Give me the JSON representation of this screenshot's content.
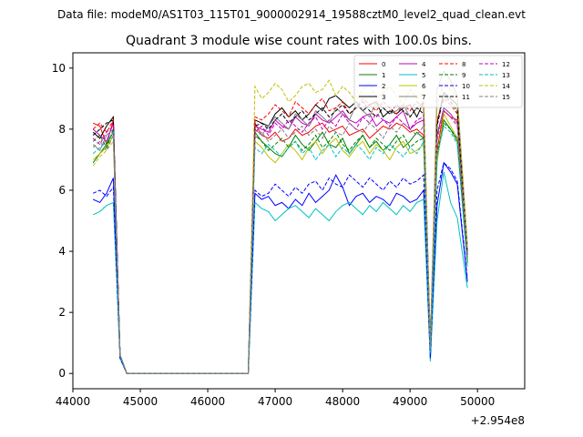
{
  "chart_data": {
    "type": "line",
    "suptitle": "Data file: modeM0/AS1T03_115T01_9000002914_19588cztM0_level2_quad_clean.evt",
    "title": "Quadrant 3 module wise count rates with 100.0s bins.",
    "xlabel": "",
    "ylabel": "",
    "x_offset_label": "+2.954e8",
    "xlim": [
      44000,
      50700
    ],
    "ylim": [
      -0.5,
      10.5
    ],
    "xticks": [
      44000,
      45000,
      46000,
      47000,
      48000,
      49000,
      50000
    ],
    "yticks": [
      0,
      2,
      4,
      6,
      8,
      10
    ],
    "grid": false,
    "legend": {
      "placement": "upper right",
      "columns": 4
    },
    "series": [
      {
        "name": "0",
        "color": "#ff0000",
        "style": "solid",
        "values": [
          8.2,
          8.1,
          7.5,
          8.3,
          0.6,
          0,
          0,
          0,
          8.2,
          7.8,
          7.7,
          7.9,
          7.6,
          7.7,
          8.0,
          7.8,
          7.9,
          8.1,
          8.2,
          7.9,
          8.0,
          8.1,
          7.8,
          7.9,
          8.0,
          7.7,
          7.9,
          8.1,
          8.0,
          8.2,
          8.1,
          7.9,
          8.0,
          7.8,
          0.8,
          7.3,
          8.6,
          8.4,
          8.3,
          3.9
        ]
      },
      {
        "name": "1",
        "color": "#008000",
        "style": "solid",
        "values": [
          6.9,
          7.2,
          7.5,
          7.9,
          0.6,
          0,
          0,
          0,
          7.9,
          7.6,
          7.4,
          7.2,
          7.1,
          7.4,
          7.8,
          7.5,
          7.3,
          7.6,
          7.9,
          7.5,
          7.4,
          7.7,
          7.2,
          7.5,
          7.8,
          7.4,
          7.6,
          7.3,
          7.5,
          7.8,
          7.4,
          7.6,
          7.9,
          7.7,
          0.7,
          7.0,
          8.3,
          8.0,
          7.6,
          3.7
        ]
      },
      {
        "name": "2",
        "color": "#0000ff",
        "style": "solid",
        "values": [
          5.7,
          5.6,
          5.9,
          6.4,
          0.5,
          0,
          0,
          0,
          5.9,
          5.7,
          5.8,
          5.5,
          5.6,
          5.4,
          5.7,
          5.5,
          5.9,
          5.6,
          5.8,
          6.0,
          6.5,
          6.1,
          5.5,
          5.8,
          5.9,
          5.6,
          5.8,
          5.7,
          5.5,
          5.9,
          5.8,
          5.6,
          5.7,
          6.0,
          0.5,
          5.5,
          6.9,
          6.6,
          6.2,
          3.0
        ]
      },
      {
        "name": "3",
        "color": "#000000",
        "style": "solid",
        "values": [
          7.9,
          7.7,
          8.1,
          8.4,
          0.6,
          0,
          0,
          0,
          8.3,
          8.2,
          8.1,
          8.5,
          8.7,
          8.4,
          8.6,
          8.3,
          8.5,
          8.8,
          8.6,
          9.0,
          9.1,
          8.9,
          8.7,
          8.9,
          8.6,
          8.8,
          8.9,
          8.4,
          8.6,
          8.5,
          8.7,
          8.8,
          8.4,
          8.9,
          0.9,
          8.2,
          9.2,
          9.0,
          8.8,
          4.0
        ]
      },
      {
        "name": "4",
        "color": "#c000c0",
        "style": "solid",
        "values": [
          8.0,
          7.8,
          7.6,
          8.2,
          0.6,
          0,
          0,
          0,
          8.1,
          8.0,
          7.9,
          8.3,
          8.1,
          8.0,
          8.4,
          8.2,
          8.1,
          8.5,
          8.3,
          8.2,
          8.4,
          8.6,
          8.3,
          8.2,
          8.4,
          8.5,
          8.1,
          8.3,
          8.2,
          8.4,
          8.6,
          8.0,
          8.2,
          8.3,
          0.8,
          7.8,
          8.7,
          8.5,
          8.2,
          3.8
        ]
      },
      {
        "name": "5",
        "color": "#00c0c0",
        "style": "solid",
        "values": [
          5.2,
          5.3,
          5.5,
          5.6,
          0.5,
          0,
          0,
          0,
          5.6,
          5.4,
          5.3,
          5.0,
          5.2,
          5.4,
          5.5,
          5.3,
          5.1,
          5.4,
          5.2,
          5.0,
          5.3,
          5.5,
          5.6,
          5.4,
          5.2,
          5.5,
          5.3,
          5.6,
          5.4,
          5.2,
          5.5,
          5.3,
          5.6,
          5.7,
          0.4,
          5.0,
          6.6,
          5.6,
          5.1,
          2.8
        ]
      },
      {
        "name": "6",
        "color": "#c0c000",
        "style": "solid",
        "values": [
          7.0,
          7.2,
          7.4,
          7.8,
          0.6,
          0,
          0,
          0,
          7.6,
          7.4,
          7.1,
          6.9,
          7.2,
          7.5,
          7.3,
          7.0,
          7.4,
          7.6,
          7.2,
          7.5,
          7.7,
          7.3,
          7.1,
          7.4,
          7.6,
          7.2,
          7.5,
          7.3,
          7.0,
          7.4,
          7.6,
          7.2,
          7.3,
          7.5,
          0.8,
          6.9,
          8.5,
          8.1,
          7.7,
          3.6
        ]
      },
      {
        "name": "7",
        "color": "#808080",
        "style": "solid",
        "values": [
          7.5,
          7.3,
          7.8,
          8.0,
          0.6,
          0,
          0,
          0,
          8.0,
          7.8,
          8.1,
          8.4,
          8.2,
          8.0,
          8.5,
          8.3,
          8.1,
          8.6,
          8.4,
          8.2,
          8.7,
          8.5,
          8.3,
          8.8,
          8.6,
          8.4,
          8.9,
          8.7,
          8.5,
          8.6,
          8.8,
          8.4,
          8.7,
          8.9,
          1.0,
          9.3,
          9.9,
          9.6,
          9.1,
          4.2
        ]
      },
      {
        "name": "8",
        "color": "#ff0000",
        "style": "dashed",
        "values": [
          8.0,
          8.2,
          7.9,
          8.3,
          0.6,
          0,
          0,
          0,
          8.4,
          8.3,
          8.5,
          8.8,
          8.6,
          8.4,
          8.9,
          8.7,
          8.5,
          8.8,
          9.0,
          8.6,
          8.7,
          8.9,
          8.5,
          8.7,
          9.0,
          8.8,
          8.6,
          8.9,
          8.7,
          8.5,
          8.8,
          8.6,
          8.9,
          8.7,
          0.9,
          8.3,
          9.0,
          8.8,
          8.5,
          3.9
        ]
      },
      {
        "name": "9",
        "color": "#008000",
        "style": "dashed",
        "values": [
          7.6,
          7.8,
          7.4,
          8.0,
          0.6,
          0,
          0,
          0,
          7.8,
          7.6,
          7.3,
          7.5,
          7.7,
          7.4,
          7.6,
          7.3,
          7.5,
          7.8,
          7.4,
          7.6,
          7.9,
          7.5,
          7.3,
          7.6,
          7.8,
          7.4,
          7.7,
          7.5,
          7.3,
          7.6,
          7.8,
          7.4,
          7.6,
          7.7,
          0.7,
          7.2,
          8.2,
          8.0,
          7.7,
          3.6
        ]
      },
      {
        "name": "10",
        "color": "#0000ff",
        "style": "dashed",
        "values": [
          5.9,
          6.0,
          5.8,
          6.1,
          0.5,
          0,
          0,
          0,
          6.0,
          5.8,
          5.9,
          6.2,
          6.0,
          5.8,
          6.1,
          5.9,
          6.2,
          6.3,
          6.0,
          6.4,
          6.2,
          6.1,
          6.5,
          6.3,
          6.1,
          6.4,
          6.2,
          6.0,
          6.3,
          6.1,
          6.4,
          6.2,
          6.3,
          6.5,
          0.5,
          6.0,
          6.9,
          6.7,
          6.3,
          3.1
        ]
      },
      {
        "name": "11",
        "color": "#000000",
        "style": "dashed",
        "values": [
          7.8,
          8.0,
          8.2,
          8.3,
          0.6,
          0,
          0,
          0,
          8.1,
          8.2,
          8.0,
          8.3,
          8.5,
          8.2,
          8.4,
          8.6,
          8.3,
          8.5,
          8.7,
          8.4,
          8.6,
          8.8,
          8.5,
          8.7,
          8.9,
          8.6,
          8.4,
          8.7,
          8.5,
          8.8,
          8.6,
          8.4,
          8.7,
          8.5,
          0.9,
          8.1,
          9.1,
          8.9,
          8.6,
          3.9
        ]
      },
      {
        "name": "12",
        "color": "#c000c0",
        "style": "dashed",
        "values": [
          7.7,
          7.5,
          7.9,
          8.1,
          0.6,
          0,
          0,
          0,
          7.9,
          8.1,
          7.8,
          8.2,
          8.0,
          8.3,
          8.1,
          7.9,
          8.2,
          8.4,
          8.0,
          8.3,
          8.1,
          8.5,
          8.2,
          8.0,
          8.4,
          8.2,
          8.5,
          8.3,
          8.1,
          8.4,
          8.2,
          8.0,
          8.3,
          8.4,
          0.8,
          7.7,
          8.6,
          8.4,
          8.1,
          3.8
        ]
      },
      {
        "name": "13",
        "color": "#00c0c0",
        "style": "dashed",
        "values": [
          7.2,
          7.4,
          7.6,
          7.9,
          0.6,
          0,
          0,
          0,
          7.4,
          7.2,
          7.5,
          7.3,
          7.1,
          7.4,
          7.6,
          7.2,
          7.4,
          7.0,
          7.3,
          7.5,
          7.1,
          7.4,
          7.2,
          7.5,
          7.3,
          7.0,
          7.4,
          7.2,
          7.5,
          7.3,
          7.1,
          7.4,
          7.2,
          7.6,
          0.7,
          7.1,
          8.1,
          7.9,
          7.5,
          3.5
        ]
      },
      {
        "name": "14",
        "color": "#c0c000",
        "style": "dashed",
        "values": [
          6.8,
          7.1,
          7.3,
          7.6,
          0.6,
          0,
          0,
          0,
          9.4,
          9.0,
          9.2,
          9.5,
          9.3,
          8.9,
          9.1,
          9.4,
          9.5,
          9.2,
          9.3,
          9.6,
          9.1,
          9.4,
          9.2,
          8.9,
          9.3,
          9.5,
          9.0,
          9.2,
          9.4,
          9.1,
          8.8,
          9.3,
          9.0,
          9.2,
          0.9,
          8.8,
          9.5,
          9.3,
          9.0,
          4.1
        ]
      },
      {
        "name": "15",
        "color": "#808080",
        "style": "dashed",
        "values": [
          7.4,
          7.6,
          7.3,
          7.8,
          0.6,
          0,
          0,
          0,
          7.7,
          7.9,
          7.6,
          7.8,
          8.0,
          7.7,
          7.9,
          8.1,
          7.8,
          8.0,
          7.7,
          8.1,
          7.9,
          7.8,
          8.2,
          8.0,
          7.9,
          8.2,
          8.0,
          7.7,
          8.1,
          7.9,
          8.2,
          8.0,
          7.8,
          8.1,
          0.8,
          7.6,
          8.7,
          8.5,
          8.2,
          3.8
        ]
      }
    ]
  }
}
